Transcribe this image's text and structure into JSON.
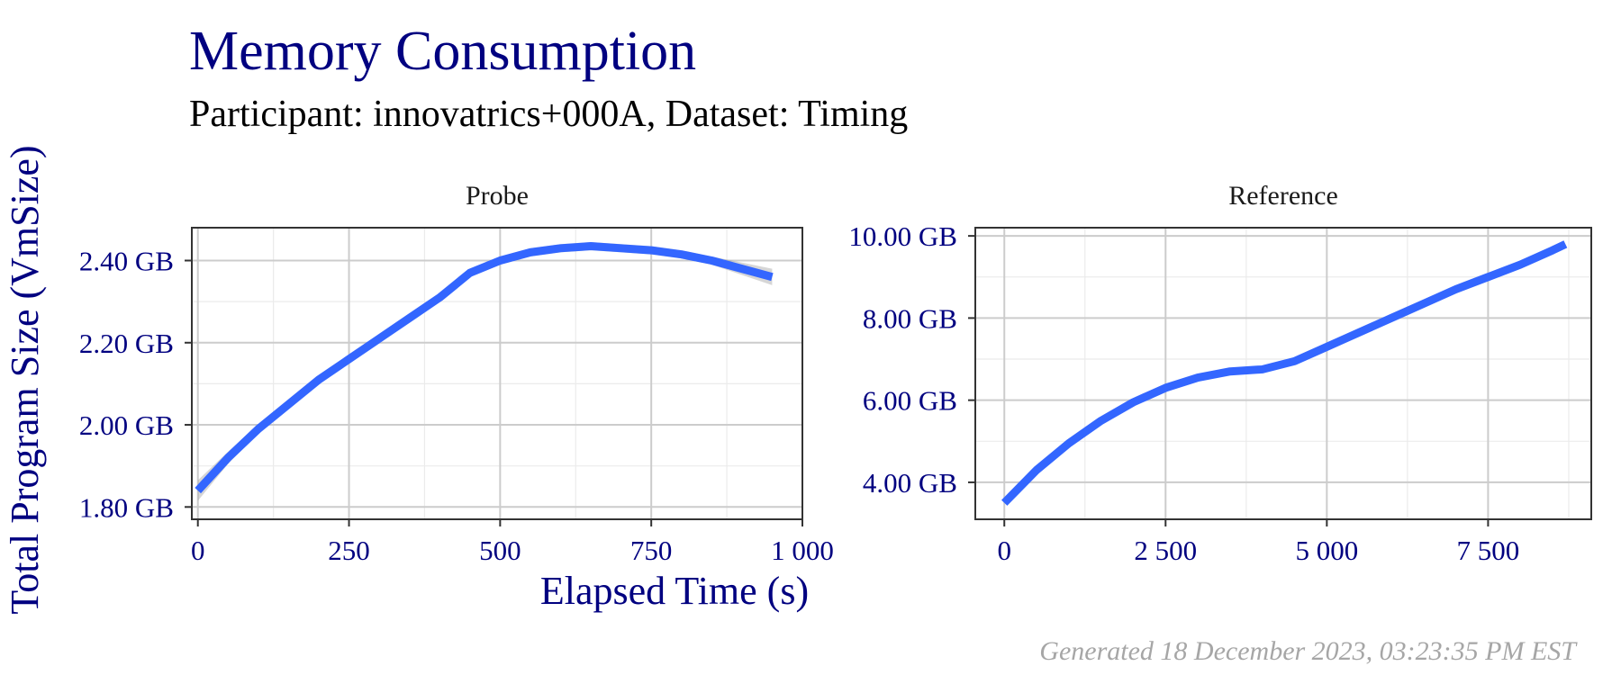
{
  "title": "Memory Consumption",
  "subtitle": "Participant: innovatrics+000A, Dataset: Timing",
  "xlabel": "Elapsed Time (s)",
  "ylabel": "Total Program Size (VmSize)",
  "caption": "Generated 18 December 2023, 03:23:35 PM EST",
  "colors": {
    "title": "#000080",
    "axis_text": "#000080",
    "line": "#3366ff",
    "band": "#999999",
    "caption": "#a6a6a6"
  },
  "chart_data": [
    {
      "type": "line",
      "panel": "Probe",
      "xlim": [
        -10,
        1000
      ],
      "ylim": [
        1.77,
        2.48
      ],
      "x_ticks": [
        0,
        250,
        500,
        750,
        1000
      ],
      "x_tick_labels": [
        "0",
        "250",
        "500",
        "750",
        "1 000"
      ],
      "y_ticks": [
        1.8,
        2.0,
        2.2,
        2.4
      ],
      "y_tick_labels": [
        "1.80 GB",
        "2.00 GB",
        "2.20 GB",
        "2.40 GB"
      ],
      "grid": true,
      "series": [
        {
          "x": [
            0,
            50,
            100,
            150,
            200,
            250,
            300,
            350,
            400,
            450,
            500,
            550,
            600,
            650,
            700,
            750,
            800,
            850,
            900,
            950
          ],
          "y": [
            1.84,
            1.92,
            1.99,
            2.05,
            2.11,
            2.16,
            2.21,
            2.26,
            2.31,
            2.37,
            2.4,
            2.42,
            2.43,
            2.435,
            2.43,
            2.425,
            2.415,
            2.4,
            2.38,
            2.36
          ]
        }
      ],
      "band": {
        "x": [
          0,
          50,
          100,
          150,
          200,
          250,
          300,
          350,
          400,
          450,
          500,
          550,
          600,
          650,
          700,
          750,
          800,
          850,
          900,
          950
        ],
        "upper": [
          1.865,
          1.935,
          2.0,
          2.06,
          2.12,
          2.17,
          2.22,
          2.27,
          2.32,
          2.38,
          2.41,
          2.43,
          2.44,
          2.445,
          2.44,
          2.435,
          2.425,
          2.41,
          2.395,
          2.38
        ],
        "lower": [
          1.815,
          1.905,
          1.98,
          2.04,
          2.1,
          2.15,
          2.2,
          2.25,
          2.3,
          2.36,
          2.39,
          2.41,
          2.42,
          2.425,
          2.42,
          2.415,
          2.405,
          2.39,
          2.365,
          2.34
        ]
      }
    },
    {
      "type": "line",
      "panel": "Reference",
      "xlim": [
        -450,
        9100
      ],
      "ylim": [
        3.1,
        10.2
      ],
      "x_ticks": [
        0,
        2500,
        5000,
        7500
      ],
      "x_tick_labels": [
        "0",
        "2 500",
        "5 000",
        "7 500"
      ],
      "y_ticks": [
        4,
        6,
        8,
        10
      ],
      "y_tick_labels": [
        "4.00 GB",
        "6.00 GB",
        "8.00 GB",
        "10.00 GB"
      ],
      "grid": true,
      "series": [
        {
          "x": [
            0,
            500,
            1000,
            1500,
            2000,
            2500,
            3000,
            3500,
            4000,
            4500,
            5000,
            5500,
            6000,
            6500,
            7000,
            7500,
            8000,
            8500,
            8700
          ],
          "y": [
            3.5,
            4.3,
            4.95,
            5.5,
            5.95,
            6.3,
            6.55,
            6.7,
            6.75,
            6.95,
            7.3,
            7.65,
            8.0,
            8.35,
            8.7,
            9.0,
            9.3,
            9.65,
            9.8
          ]
        }
      ]
    }
  ]
}
